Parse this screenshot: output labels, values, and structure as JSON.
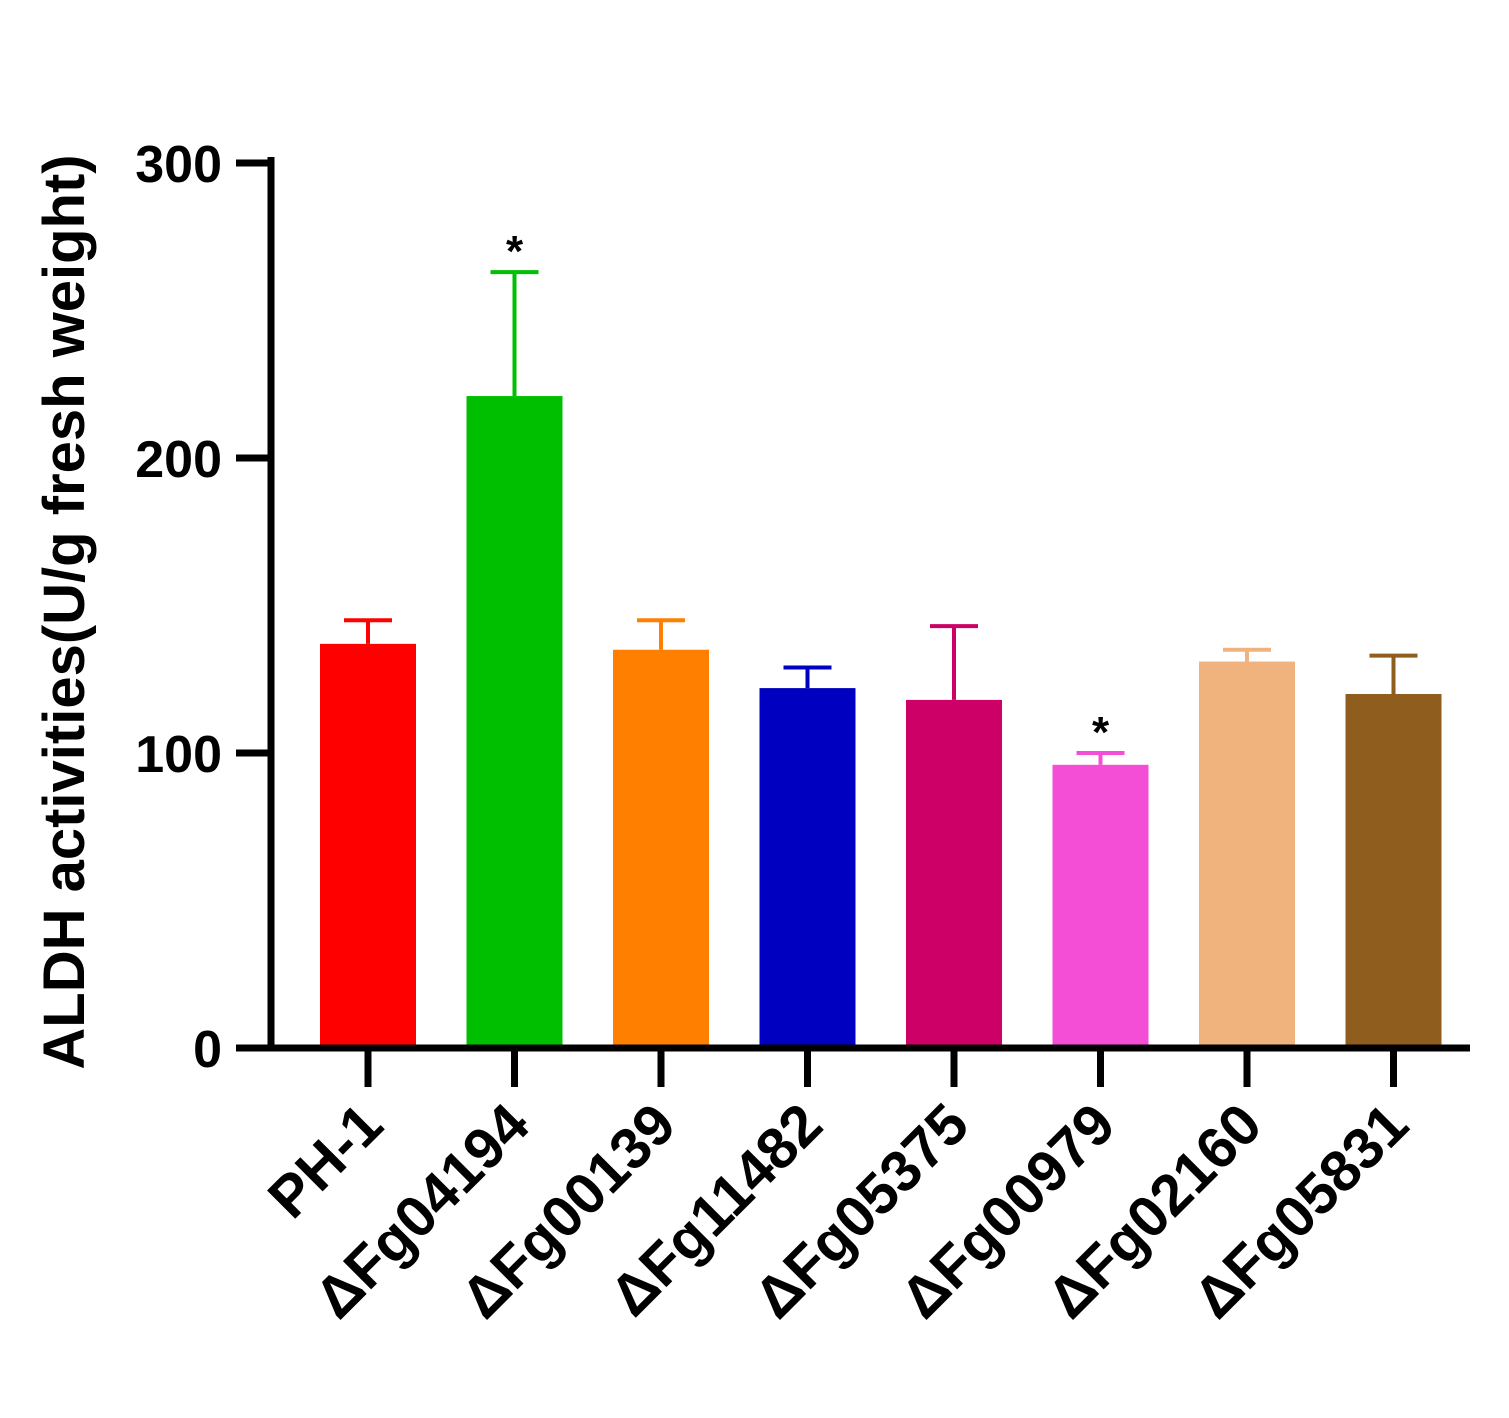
{
  "chart_data": {
    "type": "bar",
    "title": "",
    "xlabel": "",
    "ylabel": "ALDH activities(U/g fresh weight)",
    "ylim": [
      0,
      300
    ],
    "yticks": [
      "0",
      "100",
      "200",
      "300"
    ],
    "grid": false,
    "categories": [
      "PH-1",
      "ΔFg04194",
      "ΔFg00139",
      "ΔFg11482",
      "ΔFg05375",
      "ΔFg00979",
      "ΔFg02160",
      "ΔFg05831"
    ],
    "values": [
      137,
      221,
      135,
      122,
      118,
      96,
      131,
      120
    ],
    "error_upper": [
      8,
      42,
      10,
      7,
      25,
      4,
      4,
      13
    ],
    "colors": [
      "#ff0000",
      "#00bf00",
      "#ff7f00",
      "#0000c0",
      "#cc0066",
      "#f54ed6",
      "#f0b37d",
      "#8f5e1f"
    ],
    "significance": [
      "",
      "*",
      "",
      "",
      "",
      "*",
      "",
      ""
    ]
  }
}
